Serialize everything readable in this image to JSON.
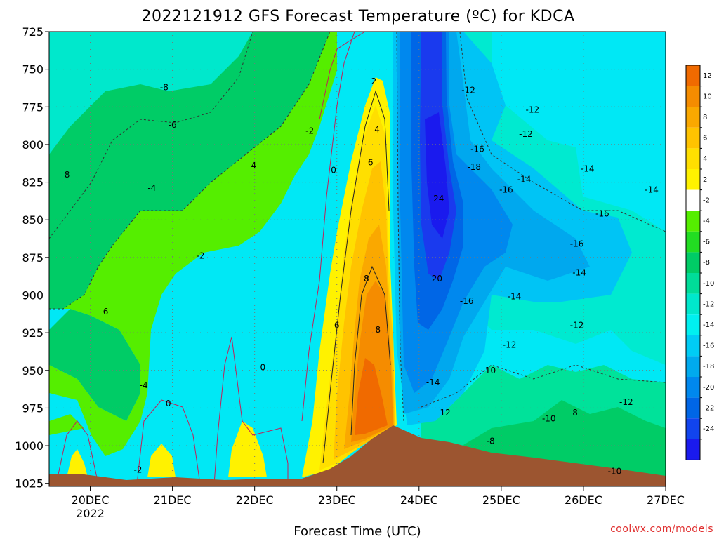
{
  "chart_data": {
    "type": "heatmap",
    "title": "2022121912 GFS Forecast Temperature (ºC) for KDCA",
    "xlabel": "Forecast Time (UTC)",
    "ylabel": "",
    "credit": "coolwx.com/models",
    "x_ticks": [
      {
        "label": "20DEC",
        "sub": "2022",
        "x": 20.0
      },
      {
        "label": "21DEC",
        "sub": "",
        "x": 21.0
      },
      {
        "label": "22DEC",
        "sub": "",
        "x": 22.0
      },
      {
        "label": "23DEC",
        "sub": "",
        "x": 23.0
      },
      {
        "label": "24DEC",
        "sub": "",
        "x": 24.0
      },
      {
        "label": "25DEC",
        "sub": "",
        "x": 25.0
      },
      {
        "label": "26DEC",
        "sub": "",
        "x": 26.0
      },
      {
        "label": "27DEC",
        "sub": "",
        "x": 27.0
      }
    ],
    "xlim": [
      19.5,
      27.0
    ],
    "y_ticks": [
      725,
      750,
      775,
      800,
      825,
      850,
      875,
      900,
      925,
      950,
      975,
      1000,
      1025
    ],
    "ylim": [
      1027,
      725
    ],
    "colorbar": {
      "levels": [
        12,
        10,
        8,
        6,
        4,
        2,
        -2,
        -4,
        -6,
        -8,
        -10,
        -12,
        -14,
        -16,
        -18,
        -20,
        -22,
        -24
      ],
      "colors": [
        "#f06a00",
        "#f58c00",
        "#faa800",
        "#ffc300",
        "#ffdf00",
        "#fff200",
        "#ffffff",
        "#55ee00",
        "#22dd22",
        "#00cc66",
        "#00dd99",
        "#00e8cc",
        "#00f0f0",
        "#00ccf5",
        "#00aaee",
        "#0088ee",
        "#0066e6",
        "#1144ee",
        "#1a1aee"
      ]
    },
    "contour_labels": [
      {
        "text": "-8",
        "x": 19.7,
        "y": 820
      },
      {
        "text": "-8",
        "x": 20.9,
        "y": 762
      },
      {
        "text": "-6",
        "x": 21.0,
        "y": 787
      },
      {
        "text": "-4",
        "x": 20.75,
        "y": 829
      },
      {
        "text": "-4",
        "x": 21.97,
        "y": 814
      },
      {
        "text": "-2",
        "x": 22.67,
        "y": 791
      },
      {
        "text": "-2",
        "x": 21.34,
        "y": 874
      },
      {
        "text": "0",
        "x": 22.96,
        "y": 817
      },
      {
        "text": "2",
        "x": 23.45,
        "y": 758
      },
      {
        "text": "4",
        "x": 23.49,
        "y": 790
      },
      {
        "text": "6",
        "x": 23.41,
        "y": 812
      },
      {
        "text": "8",
        "x": 23.36,
        "y": 889
      },
      {
        "text": "6",
        "x": 23.0,
        "y": 920
      },
      {
        "text": "8",
        "x": 23.5,
        "y": 923
      },
      {
        "text": "-6",
        "x": 20.17,
        "y": 911
      },
      {
        "text": "-4",
        "x": 20.65,
        "y": 960
      },
      {
        "text": "0",
        "x": 20.95,
        "y": 972
      },
      {
        "text": "0",
        "x": 22.1,
        "y": 948
      },
      {
        "text": "-2",
        "x": 20.58,
        "y": 1016
      },
      {
        "text": "-12",
        "x": 24.6,
        "y": 764
      },
      {
        "text": "-12",
        "x": 25.38,
        "y": 777
      },
      {
        "text": "-12",
        "x": 25.3,
        "y": 793
      },
      {
        "text": "-16",
        "x": 24.71,
        "y": 803
      },
      {
        "text": "-18",
        "x": 24.67,
        "y": 815
      },
      {
        "text": "-14",
        "x": 25.28,
        "y": 823
      },
      {
        "text": "-14",
        "x": 26.05,
        "y": 816
      },
      {
        "text": "-16",
        "x": 25.06,
        "y": 830
      },
      {
        "text": "-24",
        "x": 24.22,
        "y": 836
      },
      {
        "text": "-16",
        "x": 26.23,
        "y": 846
      },
      {
        "text": "-14",
        "x": 26.83,
        "y": 830
      },
      {
        "text": "-16",
        "x": 25.92,
        "y": 866
      },
      {
        "text": "-20",
        "x": 24.2,
        "y": 889
      },
      {
        "text": "-14",
        "x": 25.95,
        "y": 885
      },
      {
        "text": "-14",
        "x": 25.16,
        "y": 901
      },
      {
        "text": "-16",
        "x": 24.58,
        "y": 904
      },
      {
        "text": "-12",
        "x": 25.92,
        "y": 920
      },
      {
        "text": "-12",
        "x": 25.1,
        "y": 933
      },
      {
        "text": "-10",
        "x": 24.85,
        "y": 950
      },
      {
        "text": "-14",
        "x": 24.17,
        "y": 958
      },
      {
        "text": "-12",
        "x": 24.3,
        "y": 978
      },
      {
        "text": "-10",
        "x": 25.58,
        "y": 982
      },
      {
        "text": "-8",
        "x": 25.88,
        "y": 978
      },
      {
        "text": "-12",
        "x": 26.52,
        "y": 971
      },
      {
        "text": "-8",
        "x": 24.87,
        "y": 997
      },
      {
        "text": "-10",
        "x": 26.38,
        "y": 1017
      }
    ]
  }
}
